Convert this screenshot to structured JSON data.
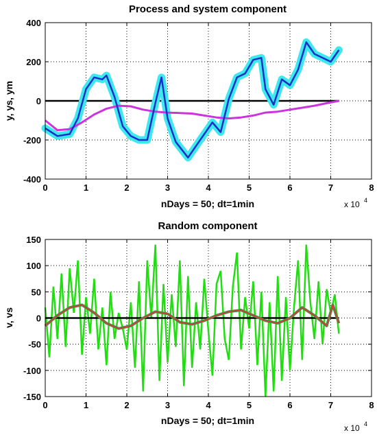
{
  "chart_data": [
    {
      "type": "line",
      "title": "Process and system component",
      "xlabel": "nDays = 50;  dt=1min",
      "ylabel": "y, ys, ym",
      "x_multiplier": "x 10",
      "x_multiplier_exponent": "4",
      "xlim": [
        0,
        8
      ],
      "ylim": [
        -400,
        400
      ],
      "xticks": [
        "0",
        "1",
        "2",
        "3",
        "4",
        "5",
        "6",
        "7",
        "8"
      ],
      "yticks": [
        "-400",
        "-200",
        "0",
        "200",
        "400"
      ],
      "grid": true,
      "reference_line": 0,
      "colors": {
        "band": "#3fe7ef",
        "main": "#1830c8",
        "smooth": "#cc33dd",
        "zero": "#000000"
      },
      "series": [
        {
          "role": "noisy band",
          "x": [
            0,
            0.3,
            0.6,
            0.8,
            1.0,
            1.2,
            1.4,
            1.5,
            1.7,
            1.9,
            2.1,
            2.3,
            2.5,
            2.7,
            2.85,
            3.0,
            3.2,
            3.5,
            3.7,
            3.9,
            4.1,
            4.3,
            4.5,
            4.7,
            4.9,
            5.1,
            5.3,
            5.4,
            5.6,
            5.8,
            6.0,
            6.2,
            6.4,
            6.6,
            6.8,
            7.0,
            7.2
          ],
          "y": [
            -140,
            -180,
            -170,
            -90,
            60,
            120,
            110,
            130,
            20,
            -130,
            -180,
            -200,
            -200,
            -10,
            120,
            -90,
            -210,
            -290,
            -230,
            -170,
            -110,
            -160,
            10,
            120,
            140,
            210,
            220,
            60,
            -20,
            110,
            80,
            160,
            300,
            240,
            220,
            200,
            260
          ]
        },
        {
          "role": "main",
          "x": [
            0,
            0.3,
            0.6,
            0.8,
            1.0,
            1.2,
            1.4,
            1.5,
            1.7,
            1.9,
            2.1,
            2.3,
            2.5,
            2.7,
            2.85,
            3.0,
            3.2,
            3.5,
            3.7,
            3.9,
            4.1,
            4.3,
            4.5,
            4.7,
            4.9,
            5.1,
            5.3,
            5.4,
            5.6,
            5.8,
            6.0,
            6.2,
            6.4,
            6.6,
            6.8,
            7.0,
            7.2
          ],
          "y": [
            -140,
            -180,
            -170,
            -90,
            60,
            120,
            110,
            130,
            20,
            -130,
            -180,
            -200,
            -200,
            -10,
            120,
            -90,
            -210,
            -290,
            -230,
            -170,
            -110,
            -160,
            10,
            120,
            140,
            210,
            220,
            60,
            -20,
            110,
            80,
            160,
            300,
            240,
            220,
            200,
            260
          ]
        },
        {
          "role": "smooth",
          "x": [
            0,
            0.3,
            0.6,
            0.9,
            1.2,
            1.5,
            1.8,
            2.1,
            2.4,
            2.7,
            3.0,
            3.3,
            3.6,
            3.9,
            4.2,
            4.5,
            4.8,
            5.1,
            5.4,
            5.7,
            6.0,
            6.3,
            6.6,
            6.9,
            7.2
          ],
          "y": [
            -100,
            -150,
            -145,
            -110,
            -70,
            -40,
            -25,
            -28,
            -45,
            -55,
            -60,
            -62,
            -65,
            -75,
            -85,
            -90,
            -85,
            -75,
            -60,
            -55,
            -45,
            -35,
            -25,
            -12,
            0
          ]
        }
      ]
    },
    {
      "type": "line",
      "title": "Random component",
      "xlabel": "nDays = 50;  dt=1min",
      "ylabel": "v, vs",
      "x_multiplier": "x 10",
      "x_multiplier_exponent": "4",
      "xlim": [
        0,
        8
      ],
      "ylim": [
        -150,
        150
      ],
      "xticks": [
        "0",
        "1",
        "2",
        "3",
        "4",
        "5",
        "6",
        "7",
        "8"
      ],
      "yticks": [
        "-150",
        "-100",
        "-50",
        "0",
        "50",
        "100",
        "150"
      ],
      "grid": true,
      "reference_line": 0,
      "colors": {
        "noise": "#22dd11",
        "smooth": "#c84040",
        "smooth_outer": "#3a9a40",
        "zero": "#000000"
      },
      "series": [
        {
          "role": "noise",
          "x": [
            0,
            0.1,
            0.2,
            0.3,
            0.4,
            0.5,
            0.6,
            0.7,
            0.8,
            0.9,
            1.0,
            1.1,
            1.2,
            1.3,
            1.4,
            1.5,
            1.6,
            1.7,
            1.8,
            1.9,
            2.0,
            2.1,
            2.2,
            2.3,
            2.4,
            2.5,
            2.6,
            2.7,
            2.8,
            2.9,
            3.0,
            3.1,
            3.2,
            3.3,
            3.4,
            3.5,
            3.6,
            3.7,
            3.8,
            3.9,
            4.0,
            4.1,
            4.2,
            4.3,
            4.4,
            4.5,
            4.6,
            4.7,
            4.8,
            4.9,
            5.0,
            5.1,
            5.2,
            5.3,
            5.4,
            5.5,
            5.6,
            5.7,
            5.8,
            5.9,
            6.0,
            6.1,
            6.2,
            6.3,
            6.4,
            6.5,
            6.6,
            6.7,
            6.8,
            6.9,
            7.0,
            7.1,
            7.2
          ],
          "y": [
            20,
            -75,
            60,
            -40,
            85,
            -55,
            95,
            10,
            110,
            -70,
            40,
            -30,
            75,
            -60,
            20,
            -90,
            50,
            -40,
            10,
            -20,
            -60,
            30,
            -95,
            70,
            -140,
            110,
            0,
            140,
            -120,
            65,
            -85,
            45,
            -55,
            110,
            -130,
            80,
            -95,
            30,
            -60,
            75,
            -25,
            -110,
            65,
            90,
            -40,
            -80,
            60,
            125,
            -60,
            40,
            -20,
            70,
            -90,
            50,
            -150,
            30,
            -140,
            80,
            -120,
            40,
            -100,
            20,
            110,
            -80,
            140,
            30,
            -40,
            70,
            -50,
            55,
            10,
            45,
            -30
          ]
        },
        {
          "role": "smooth",
          "x": [
            0,
            0.3,
            0.6,
            0.9,
            1.2,
            1.5,
            1.8,
            2.1,
            2.4,
            2.7,
            3.0,
            3.3,
            3.6,
            3.9,
            4.2,
            4.5,
            4.8,
            5.1,
            5.4,
            5.7,
            6.0,
            6.3,
            6.6,
            6.9,
            7.05,
            7.2
          ],
          "y": [
            -15,
            5,
            20,
            25,
            10,
            -10,
            -20,
            -15,
            0,
            12,
            8,
            -8,
            -12,
            -5,
            5,
            12,
            15,
            5,
            -5,
            -10,
            0,
            20,
            5,
            -15,
            25,
            -10
          ]
        }
      ]
    }
  ]
}
